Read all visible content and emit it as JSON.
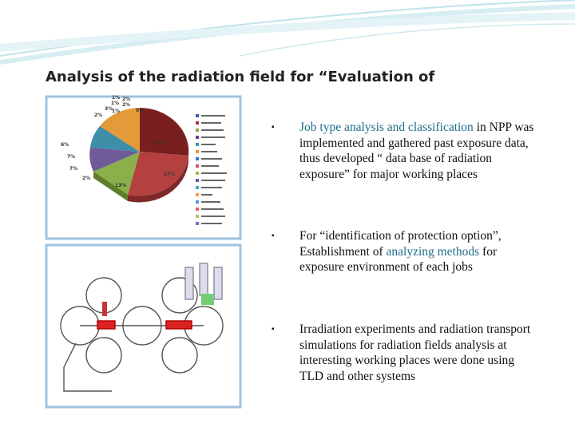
{
  "slide": {
    "title": "Analysis of the radiation field for “Evaluation of",
    "pie_labels": [
      "1%",
      "2%",
      "1%",
      "2%",
      "3%",
      "1%",
      "0%",
      "2%",
      "6%",
      "7%",
      "7%",
      "2%",
      "13%",
      "27%",
      "26%"
    ],
    "bullets": [
      {
        "parts": [
          {
            "text": "Job type analysis and  classification",
            "accent": true
          },
          {
            "text": " in NPP was implemented and gathered past exposure data, thus developed “ data base of radiation exposure” for major working places",
            "accent": false
          }
        ]
      },
      {
        "parts": [
          {
            "text": "For “identification of protection option”, Establishment of ",
            "accent": false
          },
          {
            "text": "analyzing methods",
            "accent": true
          },
          {
            "text": " for exposure environment of each jobs",
            "accent": false
          }
        ]
      },
      {
        "parts": [
          {
            "text": "Irradiation experiments and radiation transport simulations for radiation fields analysis at interesting working  places  were done using TLD and other systems",
            "accent": false
          }
        ]
      }
    ]
  }
}
